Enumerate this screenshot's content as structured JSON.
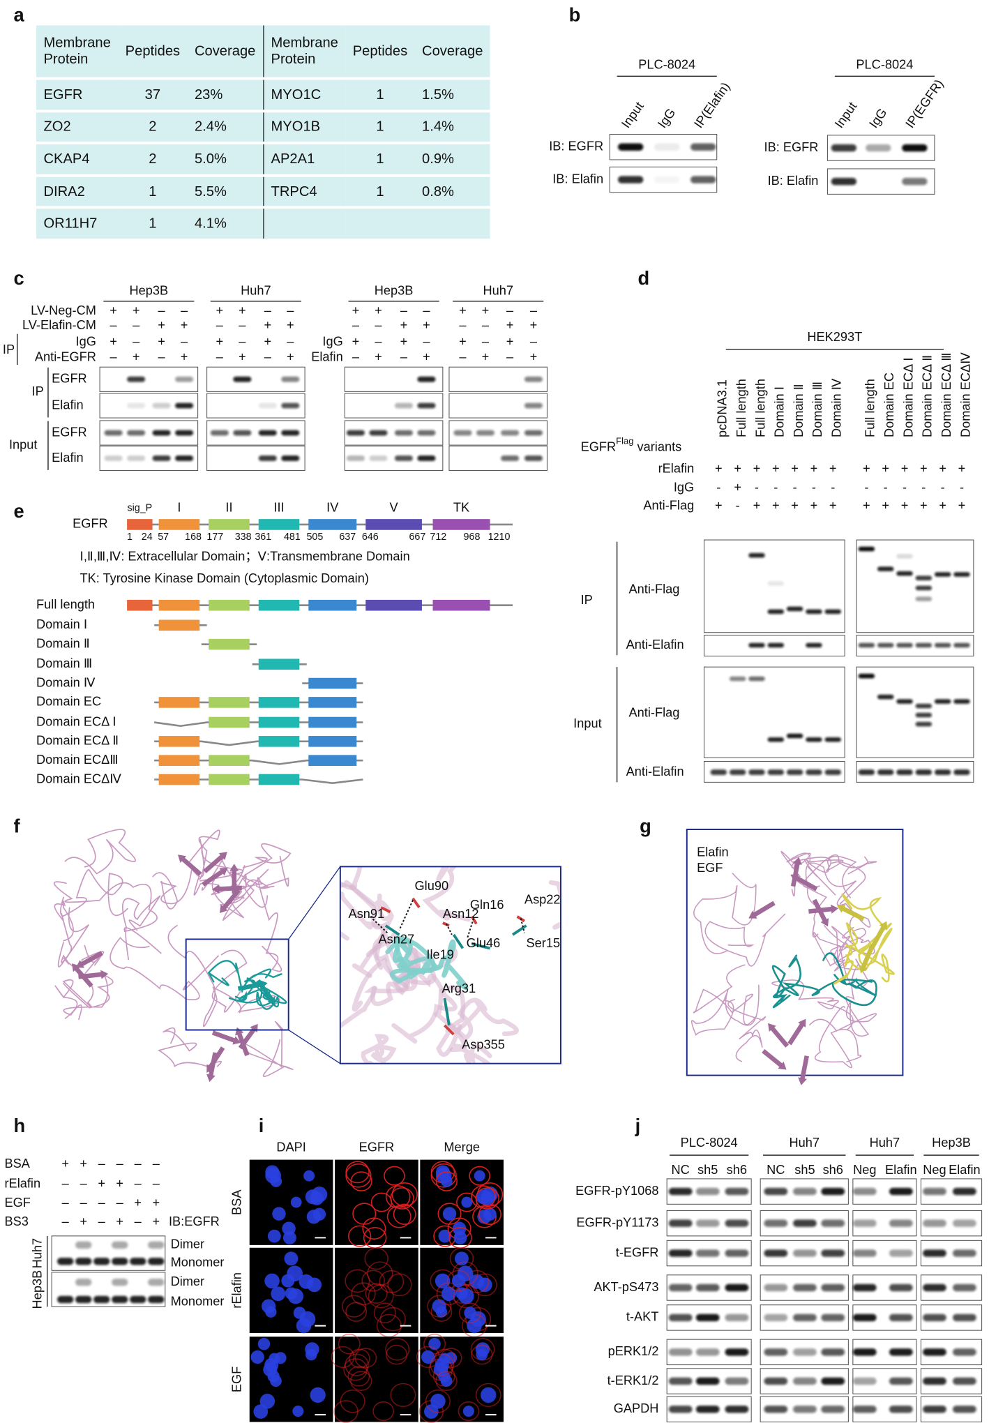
{
  "panel_labels": [
    "a",
    "b",
    "c",
    "d",
    "e",
    "f",
    "g",
    "h",
    "i",
    "j"
  ],
  "a": {
    "header": [
      "Membrane Protein",
      "Peptides",
      "Coverage",
      "Membrane Protein",
      "Peptides",
      "Coverage"
    ],
    "rows": [
      [
        "EGFR",
        "37",
        "23%",
        "MYO1C",
        "1",
        "1.5%"
      ],
      [
        "ZO2",
        "2",
        "2.4%",
        "MYO1B",
        "1",
        "1.4%"
      ],
      [
        "CKAP4",
        "2",
        "5.0%",
        "AP2A1",
        "1",
        "0.9%"
      ],
      [
        "DIRA2",
        "1",
        "5.5%",
        "TRPC4",
        "1",
        "0.8%"
      ],
      [
        "OR11H7",
        "1",
        "4.1%"
      ]
    ]
  },
  "b": {
    "blots": [
      {
        "cell_line": "PLC-8024",
        "lanes": [
          "Input",
          "IgG",
          "IP(Elafin)"
        ],
        "rows": [
          "IB: EGFR",
          "IB: Elafin"
        ]
      },
      {
        "cell_line": "PLC-8024",
        "lanes": [
          "Input",
          "IgG",
          "IP(EGFR)"
        ],
        "rows": [
          "IB: EGFR",
          "IB: Elafin"
        ]
      }
    ]
  },
  "c": {
    "row_labels": [
      "LV-Neg-CM",
      "LV-Elafin-CM",
      "IgG",
      "Anti-EGFR"
    ],
    "row_labels_right": [
      "IgG",
      "Elafin"
    ],
    "sections": [
      "IP",
      "IP",
      "Input"
    ],
    "blot_rows": [
      "EGFR",
      "Elafin",
      "EGFR",
      "Elafin"
    ],
    "groups": [
      {
        "cell_line": "Hep3B",
        "signs": [
          [
            "+",
            "+",
            "–",
            "–"
          ],
          [
            "–",
            "–",
            "+",
            "+"
          ],
          [
            "+",
            "–",
            "+",
            "–"
          ],
          [
            "–",
            "+",
            "–",
            "+"
          ]
        ]
      },
      {
        "cell_line": "Huh7",
        "signs": [
          [
            "+",
            "+",
            "–",
            "–"
          ],
          [
            "–",
            "–",
            "+",
            "+"
          ],
          [
            "+",
            "–",
            "+",
            "–"
          ],
          [
            "–",
            "+",
            "–",
            "+"
          ]
        ]
      },
      {
        "cell_line": "Hep3B",
        "signs": [
          [
            "+",
            "+",
            "–",
            "–"
          ],
          [
            "–",
            "–",
            "+",
            "+"
          ],
          [
            "+",
            "–",
            "+",
            "–"
          ],
          [
            "–",
            "+",
            "–",
            "+"
          ]
        ]
      },
      {
        "cell_line": "Huh7",
        "signs": [
          [
            "+",
            "+",
            "–",
            "–"
          ],
          [
            "–",
            "–",
            "+",
            "+"
          ],
          [
            "+",
            "–",
            "+",
            "–"
          ],
          [
            "–",
            "+",
            "–",
            "+"
          ]
        ]
      }
    ]
  },
  "d": {
    "protein": "EGFR",
    "domains": [
      "sig_P",
      "I",
      "II",
      "III",
      "IV",
      "V",
      "TK"
    ],
    "positions": [
      1,
      24,
      57,
      168,
      177,
      338,
      361,
      481,
      505,
      637,
      646,
      667,
      712,
      968,
      1210
    ],
    "notes": [
      "Ⅰ,Ⅱ,Ⅲ,Ⅳ: Extracellular Domain；Ⅴ:Transmembrane Domain",
      "TK: Tyrosine Kinase Domain (Cytoplasmic Domain)"
    ],
    "constructs": [
      "Full length",
      "Domain Ⅰ",
      "Domain Ⅱ",
      "Domain Ⅲ",
      "Domain Ⅳ",
      "Domain EC",
      "Domain ECΔ Ⅰ",
      "Domain ECΔ Ⅱ",
      "Domain ECΔⅢ",
      "Domain ECΔⅣ"
    ]
  },
  "e": {
    "cell_line": "HEK293T",
    "variants_label": [
      "EGFR",
      "Flag",
      " variants"
    ],
    "lanes_left": [
      "pcDNA3.1",
      "Full length",
      "Full length",
      "Domain Ⅰ",
      "Domain Ⅱ",
      "Domain Ⅲ",
      "Domain Ⅳ"
    ],
    "lanes_right": [
      "Full length",
      "Domain EC",
      "Domain ECΔ Ⅰ",
      "Domain ECΔ Ⅱ",
      "Domain ECΔ Ⅲ",
      "Domain ECΔⅣ"
    ],
    "rows": [
      "rElafin",
      "IgG",
      "Anti-Flag"
    ],
    "signs_left": [
      [
        "+",
        "+",
        "+",
        "+",
        "+",
        "+",
        "+"
      ],
      [
        "-",
        "+",
        "-",
        "-",
        "-",
        "-",
        "-"
      ],
      [
        "+",
        "-",
        "+",
        "+",
        "+",
        "+",
        "+"
      ]
    ],
    "signs_right": [
      [
        "+",
        "+",
        "+",
        "+",
        "+",
        "+"
      ],
      [
        "-",
        "-",
        "-",
        "-",
        "-",
        "-"
      ],
      [
        "+",
        "+",
        "+",
        "+",
        "+",
        "+"
      ]
    ],
    "blot_labels": [
      "IP",
      "Anti-Flag",
      "Anti-Elafin",
      "Input",
      "Anti-Flag",
      "Anti-Elafin"
    ]
  },
  "f": {
    "residues": [
      "Glu90",
      "Asn91",
      "Asn27",
      "Asn12",
      "Gln16",
      "Asp22",
      "Glu46",
      "Ile19",
      "Ser15",
      "Arg31",
      "Asp355"
    ]
  },
  "g": {
    "legend": [
      "Elafin",
      "EGF"
    ]
  },
  "h": {
    "rows": [
      "BSA",
      "rElafin",
      "EGF",
      "BS3"
    ],
    "signs": [
      [
        "+",
        "+",
        "–",
        "–",
        "–",
        "–"
      ],
      [
        "–",
        "–",
        "+",
        "+",
        "–",
        "–"
      ],
      [
        "–",
        "–",
        "–",
        "–",
        "+",
        "+"
      ],
      [
        "–",
        "+",
        "–",
        "+",
        "–",
        "+"
      ]
    ],
    "ib": "IB:EGFR",
    "cell_lines": [
      "Huh7",
      "Hep3B"
    ],
    "band_labels": [
      "Dimer",
      "Monomer",
      "Dimer",
      "Monomer"
    ]
  },
  "i": {
    "columns": [
      "DAPI",
      "EGFR",
      "Merge"
    ],
    "rows": [
      "BSA",
      "rElafin",
      "EGF"
    ]
  },
  "j": {
    "groups": [
      {
        "cell_line": "PLC-8024",
        "lanes": [
          "NC",
          "sh5",
          "sh6"
        ]
      },
      {
        "cell_line": "Huh7",
        "lanes": [
          "NC",
          "sh5",
          "sh6"
        ]
      },
      {
        "cell_line": "Huh7",
        "lanes": [
          "Neg",
          "Elafin"
        ]
      },
      {
        "cell_line": "Hep3B",
        "lanes": [
          "Neg",
          "Elafin"
        ]
      }
    ],
    "rows": [
      "EGFR-pY1068",
      "EGFR-pY1173",
      "t-EGFR",
      "AKT-pS473",
      "t-AKT",
      "pERK1/2",
      "t-ERK1/2",
      "GAPDH"
    ]
  }
}
